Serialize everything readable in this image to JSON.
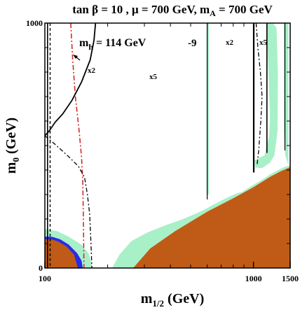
{
  "chart_data": {
    "type": "area",
    "title_parts": {
      "p1": "tan ",
      "beta": "β",
      "p2": " = 10 ,  ",
      "mu": "μ",
      "p3": " = 700 GeV,  m",
      "A_sub": "A",
      "p4": " = 700 GeV"
    },
    "xlabel": {
      "main": "m",
      "sub": "1/2",
      "unit": " (GeV)"
    },
    "ylabel": {
      "main": "m",
      "sub": "0",
      "unit": " (GeV)"
    },
    "x_scale": "log",
    "xlim": [
      100,
      1500
    ],
    "ylim": [
      0,
      1000
    ],
    "x_ticks": [
      {
        "value": 100,
        "label": "100"
      },
      {
        "value": 1000,
        "label": "1000"
      },
      {
        "value": 1500,
        "label": "1500"
      }
    ],
    "y_ticks": [
      {
        "value": 0,
        "label": "0"
      },
      {
        "value": 1000,
        "label": "1000"
      }
    ],
    "annotations": {
      "mh_label": {
        "main": "m",
        "sub": "h",
        "rest": " = 114 GeV"
      },
      "x2_left": "x2",
      "x5_mid": "x5",
      "minus9": "-9",
      "x2_right": "x2",
      "x5_right": "x5"
    },
    "colors": {
      "stau_lsp_region": "#bf5b17",
      "relic_density_band": "#a8f0c8",
      "b_to_s_gamma_excluded": "#2a2ae6",
      "higgs_contour": "#000000",
      "chargino_limit": "#000000",
      "g_minus_2": "#d42a2a"
    },
    "series": {
      "brown_region": [
        [
          265,
          0
        ],
        [
          320,
          80
        ],
        [
          420,
          150
        ],
        [
          600,
          230
        ],
        [
          800,
          285
        ],
        [
          1000,
          330
        ],
        [
          1200,
          372
        ],
        [
          1350,
          395
        ],
        [
          1500,
          412
        ],
        [
          1500,
          0
        ]
      ],
      "blue_region": [
        [
          100,
          0
        ],
        [
          100,
          128
        ],
        [
          108,
          128
        ],
        [
          118,
          118
        ],
        [
          130,
          96
        ],
        [
          143,
          60
        ],
        [
          150,
          30
        ],
        [
          152,
          0
        ]
      ],
      "green_bottom_left": [
        [
          100,
          0
        ],
        [
          100,
          160
        ],
        [
          115,
          150
        ],
        [
          130,
          128
        ],
        [
          150,
          95
        ],
        [
          162,
          60
        ],
        [
          170,
          0
        ],
        [
          152,
          0
        ],
        [
          150,
          30
        ],
        [
          143,
          60
        ],
        [
          130,
          96
        ],
        [
          118,
          118
        ],
        [
          108,
          128
        ],
        [
          100,
          128
        ]
      ],
      "green_band_main": [
        [
          210,
          0
        ],
        [
          228,
          55
        ],
        [
          260,
          110
        ],
        [
          310,
          145
        ],
        [
          380,
          175
        ],
        [
          460,
          200
        ],
        [
          530,
          222
        ],
        [
          580,
          238
        ],
        [
          640,
          258
        ],
        [
          700,
          275
        ],
        [
          760,
          290
        ],
        [
          830,
          305
        ],
        [
          880,
          310
        ],
        [
          930,
          323
        ],
        [
          1000,
          340
        ],
        [
          1100,
          360
        ],
        [
          1200,
          382
        ],
        [
          1300,
          398
        ],
        [
          1400,
          412
        ],
        [
          1500,
          420
        ],
        [
          1500,
          412
        ],
        [
          1350,
          395
        ],
        [
          1200,
          372
        ],
        [
          1000,
          330
        ],
        [
          800,
          285
        ],
        [
          600,
          230
        ],
        [
          420,
          150
        ],
        [
          320,
          80
        ],
        [
          265,
          0
        ]
      ],
      "green_funnel_left": [
        [
          596,
          1000
        ],
        [
          612,
          1000
        ],
        [
          612,
          300
        ],
        [
          596,
          300
        ]
      ],
      "green_funnel_right": [
        [
          1195,
          1000
        ],
        [
          1240,
          1000
        ],
        [
          1290,
          980
        ],
        [
          1310,
          790
        ],
        [
          1305,
          560
        ],
        [
          1260,
          460
        ],
        [
          1200,
          430
        ],
        [
          1100,
          408
        ],
        [
          1020,
          410
        ],
        [
          1010,
          440
        ],
        [
          1130,
          460
        ],
        [
          1190,
          540
        ],
        [
          1200,
          620
        ],
        [
          1180,
          800
        ],
        [
          1160,
          1000
        ]
      ],
      "green_funnel_far_right": [
        [
          1400,
          1000
        ],
        [
          1470,
          1000
        ],
        [
          1470,
          420
        ],
        [
          1420,
          460
        ],
        [
          1400,
          560
        ]
      ],
      "chargino_vertical": [
        [
          103,
          0
        ],
        [
          103,
          1000
        ]
      ],
      "higgs_contour": [
        [
          175,
          1000
        ],
        [
          172,
          930
        ],
        [
          165,
          850
        ],
        [
          150,
          760
        ],
        [
          135,
          685
        ],
        [
          122,
          630
        ],
        [
          112,
          595
        ],
        [
          105,
          560
        ],
        [
          100,
          540
        ]
      ],
      "dashed_contour": [
        [
          106,
          1000
        ],
        [
          106,
          0
        ]
      ],
      "red_gmin2_contour": [
        [
          133,
          1000
        ],
        [
          136,
          850
        ],
        [
          140,
          700
        ],
        [
          146,
          560
        ],
        [
          150,
          450
        ],
        [
          152,
          350
        ],
        [
          153,
          200
        ],
        [
          154,
          0
        ]
      ],
      "dashdot_left": [
        [
          100,
          540
        ],
        [
          112,
          505
        ],
        [
          130,
          455
        ],
        [
          145,
          415
        ],
        [
          155,
          370
        ],
        [
          160,
          300
        ],
        [
          164,
          220
        ],
        [
          166,
          120
        ],
        [
          168,
          0
        ]
      ],
      "vertical_x5_mid": [
        [
          600,
          1000
        ],
        [
          600,
          280
        ]
      ],
      "vertical_minus9": [
        [
          1003,
          1000
        ],
        [
          1003,
          390
        ]
      ],
      "vertical_x2_right": [
        [
          1160,
          1000
        ],
        [
          1160,
          470
        ]
      ],
      "vertical_x5_right": [
        [
          1415,
          1000
        ],
        [
          1415,
          480
        ]
      ],
      "dashdot_right": [
        [
          1030,
          1000
        ],
        [
          1050,
          900
        ],
        [
          1080,
          800
        ],
        [
          1100,
          700
        ],
        [
          1085,
          600
        ],
        [
          1060,
          480
        ],
        [
          1040,
          420
        ]
      ]
    }
  }
}
